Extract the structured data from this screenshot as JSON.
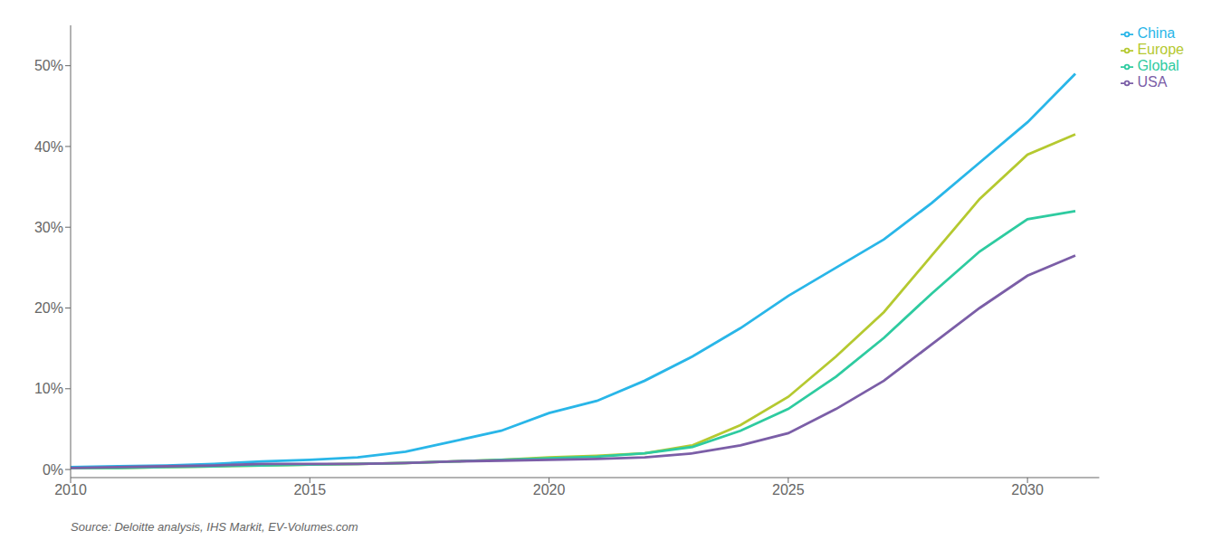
{
  "chart_data": {
    "type": "line",
    "x": [
      2010,
      2011,
      2012,
      2013,
      2014,
      2015,
      2016,
      2017,
      2018,
      2019,
      2020,
      2021,
      2022,
      2023,
      2024,
      2025,
      2026,
      2027,
      2028,
      2029,
      2030,
      2031
    ],
    "series": [
      {
        "name": "China",
        "color": "#29b6e8",
        "values": [
          0.003,
          0.004,
          0.005,
          0.007,
          0.01,
          0.012,
          0.015,
          0.022,
          0.035,
          0.048,
          0.07,
          0.085,
          0.11,
          0.14,
          0.175,
          0.215,
          0.25,
          0.285,
          0.33,
          0.38,
          0.43,
          0.49
        ]
      },
      {
        "name": "Europe",
        "color": "#b5c930",
        "values": [
          0.002,
          0.002,
          0.003,
          0.004,
          0.005,
          0.006,
          0.007,
          0.008,
          0.01,
          0.012,
          0.015,
          0.017,
          0.02,
          0.03,
          0.055,
          0.09,
          0.14,
          0.195,
          0.265,
          0.335,
          0.39,
          0.415
        ]
      },
      {
        "name": "Global",
        "color": "#2ecba0",
        "values": [
          0.002,
          0.002,
          0.003,
          0.004,
          0.005,
          0.006,
          0.007,
          0.008,
          0.01,
          0.012,
          0.014,
          0.016,
          0.02,
          0.028,
          0.048,
          0.075,
          0.115,
          0.163,
          0.218,
          0.27,
          0.31,
          0.32
        ]
      },
      {
        "name": "USA",
        "color": "#7b5ea7",
        "values": [
          0.002,
          0.003,
          0.004,
          0.005,
          0.007,
          0.007,
          0.007,
          0.008,
          0.01,
          0.011,
          0.012,
          0.013,
          0.015,
          0.02,
          0.03,
          0.045,
          0.075,
          0.11,
          0.155,
          0.2,
          0.24,
          0.265
        ]
      }
    ],
    "xlim": [
      2010,
      2031.5
    ],
    "xticks": [
      2010,
      2015,
      2020,
      2025,
      2030
    ],
    "ylim": [
      -0.01,
      0.55
    ],
    "yticks": [
      {
        "value": 0.0,
        "label": "0%"
      },
      {
        "value": 0.1,
        "label": "10%"
      },
      {
        "value": 0.2,
        "label": "20%"
      },
      {
        "value": 0.3,
        "label": "30%"
      },
      {
        "value": 0.4,
        "label": "40%"
      },
      {
        "value": 0.5,
        "label": "50%"
      }
    ],
    "grid": false,
    "legend": "upper right",
    "annotations": [
      "Source: Deloitte analysis, IHS Markit, EV-Volumes.com"
    ]
  }
}
